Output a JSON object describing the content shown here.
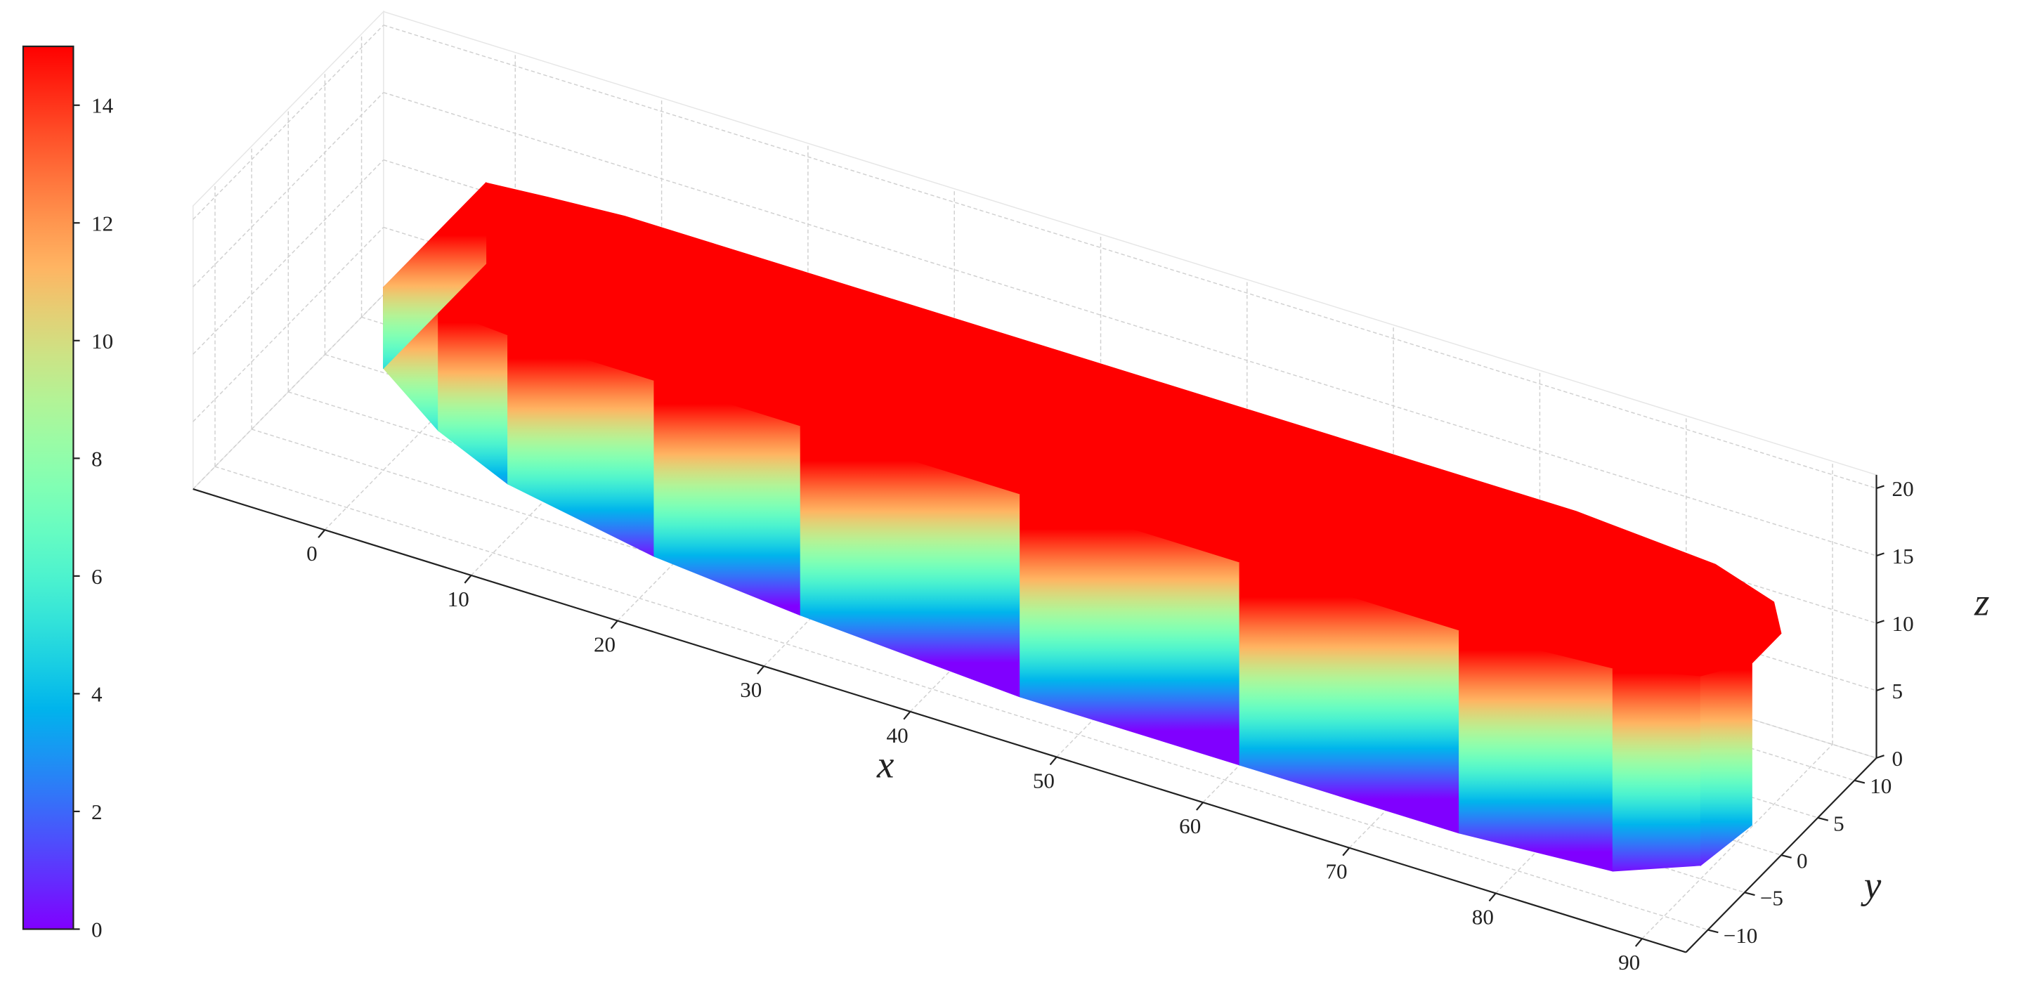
{
  "chart_data": {
    "type": "surface3d",
    "x_label": "x",
    "y_label": "y",
    "z_label": "z",
    "xlim": [
      -9,
      93
    ],
    "ylim": [
      -13,
      13
    ],
    "zlim": [
      0,
      21
    ],
    "xticks": [
      0,
      10,
      20,
      30,
      40,
      50,
      60,
      70,
      80,
      90
    ],
    "yticks": [
      {
        "value": -10,
        "label": "−10"
      },
      {
        "value": -5,
        "label": "−5"
      },
      0,
      5,
      10
    ],
    "zticks": [
      0,
      5,
      10,
      15,
      20
    ],
    "grid": true,
    "colormap": "rainbow",
    "colorbar": {
      "lim": [
        0,
        15
      ],
      "ticks": [
        0,
        2,
        4,
        6,
        8,
        10,
        12,
        14
      ]
    },
    "hull": {
      "x": [
        1,
        5,
        10,
        20,
        30,
        45,
        60,
        75,
        85,
        90,
        92
      ],
      "keel": [
        9,
        6,
        4,
        2,
        1,
        0,
        0,
        0,
        0,
        1,
        3
      ],
      "half_breadth": [
        7,
        7.5,
        8,
        8,
        8,
        8,
        8,
        8,
        7,
        5,
        2
      ],
      "deck": 15
    }
  }
}
